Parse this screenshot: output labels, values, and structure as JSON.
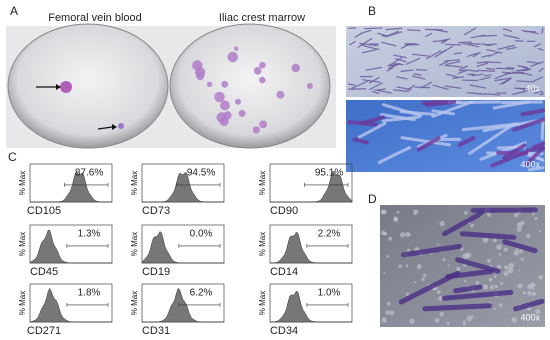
{
  "panel_a": {
    "label": "A",
    "titles": [
      "Femoral vein blood",
      "Iliac crest marrow"
    ]
  },
  "panel_b": {
    "label": "B",
    "magnifications": [
      "40x",
      "400x"
    ]
  },
  "panel_c": {
    "label": "C",
    "y_axis_label": "% Max",
    "histograms": [
      {
        "marker": "CD105",
        "percent": "87.6%"
      },
      {
        "marker": "CD73",
        "percent": "94.5%"
      },
      {
        "marker": "CD90",
        "percent": "95.1%"
      },
      {
        "marker": "CD45",
        "percent": "1.3%"
      },
      {
        "marker": "CD19",
        "percent": "0.0%"
      },
      {
        "marker": "CD14",
        "percent": "2.2%"
      },
      {
        "marker": "CD271",
        "percent": "1.8%"
      },
      {
        "marker": "CD31",
        "percent": "6.2%"
      },
      {
        "marker": "CD34",
        "percent": "1.0%"
      }
    ]
  },
  "panel_d": {
    "label": "D",
    "magnification": "400x"
  }
}
